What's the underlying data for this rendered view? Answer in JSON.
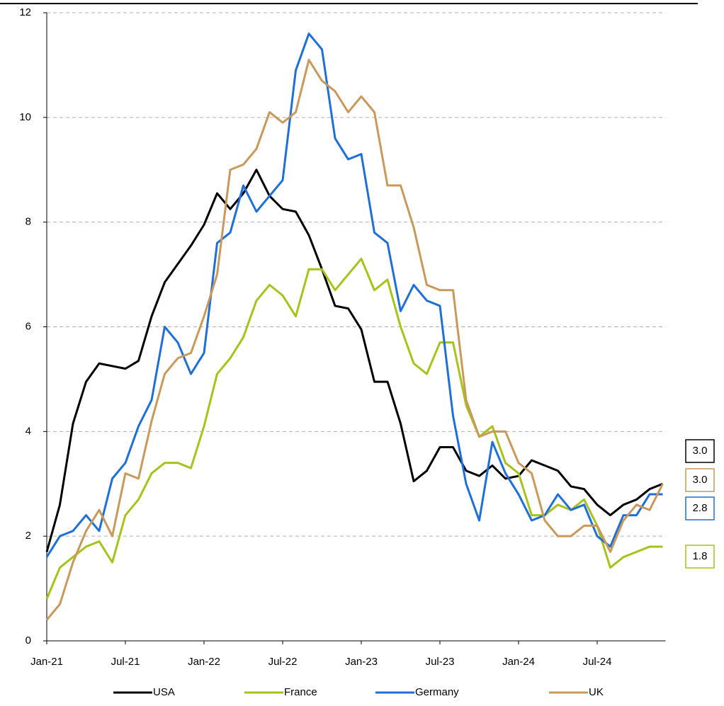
{
  "chart_data": {
    "type": "line",
    "categories": [
      "Jan-21",
      null,
      null,
      null,
      null,
      null,
      "Jul-21",
      null,
      null,
      null,
      null,
      null,
      "Jan-22",
      null,
      null,
      null,
      null,
      null,
      "Jul-22",
      null,
      null,
      null,
      null,
      null,
      "Jan-23",
      null,
      null,
      null,
      null,
      null,
      "Jul-23",
      null,
      null,
      null,
      null,
      null,
      "Jan-24",
      null,
      null,
      null,
      null,
      null,
      "Jul-24",
      null,
      null,
      null,
      null,
      null
    ],
    "ylim": [
      0,
      12
    ],
    "yticks": [
      0,
      2,
      4,
      6,
      8,
      10,
      12
    ],
    "grid": true,
    "legend": "bottom",
    "series": [
      {
        "name": "USA",
        "color": "#000000",
        "end_label": "3.0",
        "values": [
          1.7,
          2.6,
          4.15,
          4.95,
          5.3,
          5.25,
          5.2,
          5.35,
          6.2,
          6.85,
          7.2,
          7.55,
          7.95,
          8.55,
          8.25,
          8.55,
          9.0,
          8.5,
          8.25,
          8.2,
          7.75,
          7.1,
          6.4,
          6.35,
          5.95,
          4.95,
          4.95,
          4.15,
          3.05,
          3.25,
          3.7,
          3.7,
          3.25,
          3.15,
          3.35,
          3.1,
          3.15,
          3.45,
          3.35,
          3.25,
          2.95,
          2.9,
          2.6,
          2.4,
          2.6,
          2.7,
          2.9,
          3.0
        ]
      },
      {
        "name": "France",
        "color": "#a6c31c",
        "end_label": "1.8",
        "values": [
          0.8,
          1.4,
          1.6,
          1.8,
          1.9,
          1.5,
          2.4,
          2.7,
          3.2,
          3.4,
          3.4,
          3.3,
          4.1,
          5.1,
          5.4,
          5.8,
          6.5,
          6.8,
          6.6,
          6.2,
          7.1,
          7.1,
          6.7,
          7.0,
          7.3,
          6.7,
          6.9,
          6.0,
          5.3,
          5.1,
          5.7,
          5.7,
          4.5,
          3.9,
          4.1,
          3.4,
          3.2,
          2.4,
          2.4,
          2.6,
          2.5,
          2.7,
          2.2,
          1.4,
          1.6,
          1.7,
          1.8,
          1.8
        ]
      },
      {
        "name": "Germany",
        "color": "#1f6fd9",
        "end_label": "2.8",
        "values": [
          1.6,
          2.0,
          2.1,
          2.4,
          2.1,
          3.1,
          3.4,
          4.1,
          4.6,
          6.0,
          5.7,
          5.1,
          5.5,
          7.6,
          7.8,
          8.7,
          8.2,
          8.5,
          8.8,
          10.9,
          11.6,
          11.3,
          9.6,
          9.2,
          9.3,
          7.8,
          7.6,
          6.3,
          6.8,
          6.5,
          6.4,
          4.3,
          3.0,
          2.3,
          3.8,
          3.2,
          2.8,
          2.3,
          2.4,
          2.8,
          2.5,
          2.6,
          2.0,
          1.8,
          2.4,
          2.4,
          2.8,
          2.8
        ]
      },
      {
        "name": "UK",
        "color": "#c8995a",
        "end_label": "3.0",
        "values": [
          0.4,
          0.7,
          1.5,
          2.1,
          2.5,
          2.0,
          3.2,
          3.1,
          4.2,
          5.1,
          5.4,
          5.5,
          6.2,
          7.0,
          9.0,
          9.1,
          9.4,
          10.1,
          9.9,
          10.1,
          11.1,
          10.7,
          10.5,
          10.1,
          10.4,
          10.1,
          8.7,
          8.7,
          7.9,
          6.8,
          6.7,
          6.7,
          4.6,
          3.9,
          4.0,
          4.0,
          3.4,
          3.2,
          2.3,
          2.0,
          2.0,
          2.2,
          2.2,
          1.7,
          2.3,
          2.6,
          2.5,
          3.0
        ]
      }
    ]
  }
}
